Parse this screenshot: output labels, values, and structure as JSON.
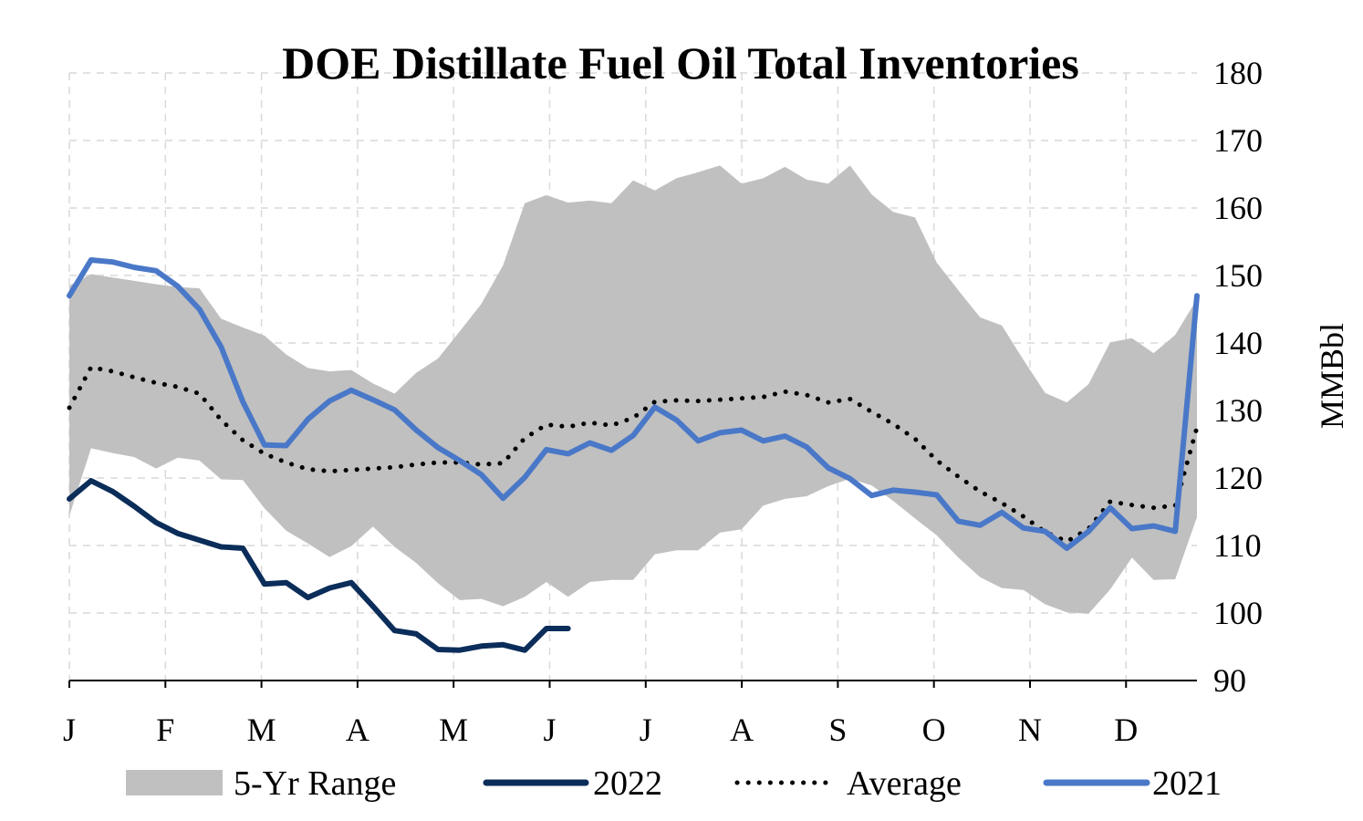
{
  "colors": {
    "range_fill": "#c0c0c0",
    "line_2022": "#0b2d5a",
    "line_2021": "#4a78c8",
    "average": "#000000",
    "grid": "#d9d9d9",
    "axis": "#000000"
  },
  "chart_data": {
    "type": "line",
    "title": "DOE Distillate Fuel Oil Total Inventories",
    "ylabel": "MMBbl",
    "xlabel": "",
    "ylim": [
      90,
      180
    ],
    "yticks": [
      90,
      100,
      110,
      120,
      130,
      140,
      150,
      160,
      170,
      180
    ],
    "y_axis_side": "right",
    "grid": "dashed",
    "legend_position": "bottom",
    "x_unit": "week of year (1-53)",
    "xlim": [
      1,
      53
    ],
    "month_ticks": [
      {
        "label": "J",
        "week": 1
      },
      {
        "label": "F",
        "week": 5.43
      },
      {
        "label": "M",
        "week": 9.86
      },
      {
        "label": "A",
        "week": 14.29
      },
      {
        "label": "M",
        "week": 18.72
      },
      {
        "label": "J",
        "week": 23.15
      },
      {
        "label": "J",
        "week": 27.58
      },
      {
        "label": "A",
        "week": 32.01
      },
      {
        "label": "S",
        "week": 36.44
      },
      {
        "label": "O",
        "week": 40.87
      },
      {
        "label": "N",
        "week": 45.3
      },
      {
        "label": "D",
        "week": 49.73
      }
    ],
    "range_5yr": {
      "name": "5-Yr Range",
      "weeks": [
        1,
        2,
        3,
        4,
        5,
        6,
        7,
        8,
        9,
        10,
        11,
        12,
        13,
        14,
        15,
        16,
        17,
        18,
        19,
        20,
        21,
        22,
        23,
        24,
        25,
        26,
        27,
        28,
        29,
        30,
        31,
        32,
        33,
        34,
        35,
        36,
        37,
        38,
        39,
        40,
        41,
        42,
        43,
        44,
        45,
        46,
        47,
        48,
        49,
        50,
        51,
        52,
        53
      ],
      "high": [
        148.5,
        150.2,
        149.7,
        149.2,
        148.7,
        148.3,
        148.1,
        143.6,
        142.3,
        141.1,
        138.3,
        136.3,
        135.8,
        136.0,
        134.0,
        132.5,
        135.6,
        137.7,
        141.7,
        145.8,
        151.5,
        160.7,
        161.9,
        160.8,
        161.1,
        160.7,
        164.1,
        162.6,
        164.4,
        165.3,
        166.3,
        163.6,
        164.4,
        166.1,
        164.2,
        163.6,
        166.3,
        162.0,
        159.4,
        158.6,
        151.9,
        147.8,
        143.8,
        142.6,
        137.5,
        132.6,
        131.2,
        133.9,
        140.1,
        140.7,
        138.5,
        141.2,
        146.5
      ],
      "low": [
        114.4,
        124.4,
        123.7,
        123.1,
        121.4,
        123.0,
        122.6,
        119.8,
        119.7,
        115.5,
        112.2,
        110.3,
        108.3,
        109.9,
        112.8,
        109.8,
        107.4,
        104.4,
        101.9,
        102.1,
        101.0,
        102.4,
        104.6,
        102.4,
        104.6,
        104.9,
        104.9,
        108.7,
        109.3,
        109.3,
        111.9,
        112.4,
        115.9,
        116.9,
        117.3,
        118.8,
        119.9,
        118.9,
        116.6,
        114.0,
        111.5,
        108.2,
        105.3,
        103.7,
        103.4,
        101.3,
        100.1,
        99.9,
        103.5,
        108.2,
        104.9,
        105.0,
        114.2
      ]
    },
    "series": [
      {
        "name": "2022",
        "weeks": [
          1,
          2,
          3,
          4,
          5,
          6,
          7,
          8,
          9,
          10,
          11,
          12,
          13,
          14,
          15,
          16,
          17,
          18,
          19,
          20,
          21,
          22,
          23,
          24
        ],
        "values": [
          116.9,
          119.6,
          118.0,
          115.8,
          113.4,
          111.8,
          110.8,
          109.8,
          109.6,
          104.3,
          104.5,
          102.3,
          103.7,
          104.5,
          101.0,
          97.4,
          96.9,
          94.6,
          94.5,
          95.1,
          95.3,
          94.5,
          97.7,
          97.7
        ]
      },
      {
        "name": "Average",
        "weeks": [
          1,
          2,
          3,
          4,
          5,
          6,
          7,
          8,
          9,
          10,
          11,
          12,
          13,
          14,
          15,
          16,
          17,
          18,
          19,
          20,
          21,
          22,
          23,
          24,
          25,
          26,
          27,
          28,
          29,
          30,
          31,
          32,
          33,
          34,
          35,
          36,
          37,
          38,
          39,
          40,
          41,
          42,
          43,
          44,
          45,
          46,
          47,
          48,
          49,
          50,
          51,
          52,
          53
        ],
        "values": [
          130.4,
          136.4,
          135.8,
          134.9,
          134.1,
          133.5,
          132.5,
          128.6,
          125.6,
          123.6,
          122.3,
          121.3,
          121.0,
          121.2,
          121.4,
          121.6,
          122.0,
          122.3,
          122.3,
          122.0,
          122.2,
          125.9,
          127.9,
          127.6,
          128.2,
          127.8,
          128.9,
          131.3,
          131.5,
          131.4,
          131.6,
          131.8,
          132.0,
          132.8,
          132.3,
          131.2,
          131.7,
          129.8,
          128.0,
          125.8,
          122.6,
          120.2,
          118.0,
          116.3,
          114.3,
          112.0,
          110.6,
          112.5,
          116.5,
          116.0,
          115.6,
          115.9,
          127.5
        ]
      },
      {
        "name": "2021",
        "weeks": [
          1,
          2,
          3,
          4,
          5,
          6,
          7,
          8,
          9,
          10,
          11,
          12,
          13,
          14,
          15,
          16,
          17,
          18,
          19,
          20,
          21,
          22,
          23,
          24,
          25,
          26,
          27,
          28,
          29,
          30,
          31,
          32,
          33,
          34,
          35,
          36,
          37,
          38,
          39,
          40,
          41,
          42,
          43,
          44,
          45,
          46,
          47,
          48,
          49,
          50,
          51,
          52,
          53
        ],
        "values": [
          147.0,
          152.3,
          152.0,
          151.2,
          150.7,
          148.4,
          145.0,
          139.4,
          131.3,
          124.9,
          124.8,
          128.7,
          131.4,
          133.0,
          131.6,
          130.1,
          127.1,
          124.5,
          122.6,
          120.5,
          117.0,
          120.1,
          124.2,
          123.6,
          125.2,
          124.1,
          126.3,
          130.5,
          128.6,
          125.5,
          126.7,
          127.1,
          125.5,
          126.2,
          124.6,
          121.5,
          119.9,
          117.4,
          118.2,
          117.9,
          117.5,
          113.6,
          113.0,
          114.9,
          112.6,
          112.1,
          109.6,
          112.1,
          115.6,
          112.5,
          112.9,
          112.1,
          147.0
        ]
      }
    ],
    "legend": [
      {
        "key": "range",
        "label": "5-Yr Range"
      },
      {
        "key": "s2022",
        "label": "2022"
      },
      {
        "key": "average",
        "label": "Average"
      },
      {
        "key": "s2021",
        "label": "2021"
      }
    ]
  }
}
